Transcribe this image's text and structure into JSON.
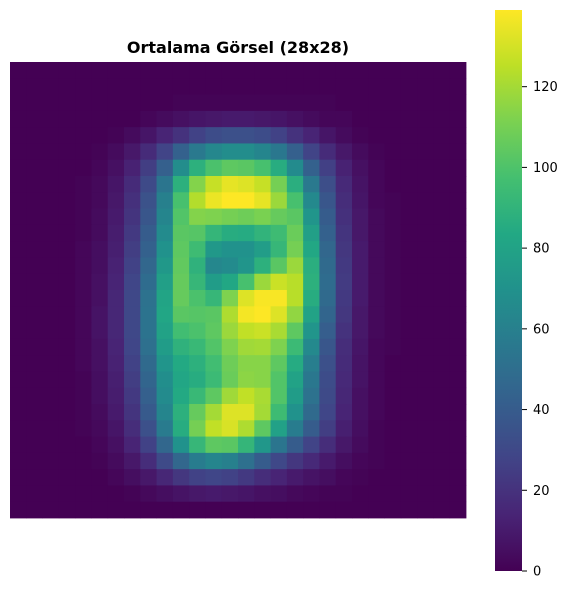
{
  "chart_data": {
    "type": "heatmap",
    "title": "Ortalama Görsel (28x28)",
    "xlabel": "",
    "ylabel": "",
    "rows": 28,
    "cols": 28,
    "colormap": "viridis",
    "value_range": [
      0,
      139
    ],
    "colorbar": {
      "ticks": [
        0,
        20,
        40,
        60,
        80,
        100,
        120
      ],
      "tick_labels": [
        "0",
        "20",
        "40",
        "60",
        "80",
        "100",
        "120"
      ]
    },
    "grid": false,
    "legend": "none",
    "axes_visible": false,
    "values": [
      [
        0,
        0,
        0,
        0,
        0,
        0,
        0,
        0,
        0,
        0,
        0,
        0,
        0,
        0,
        0,
        0,
        0,
        0,
        0,
        0,
        0,
        0,
        0,
        0,
        0,
        0,
        0,
        0
      ],
      [
        0,
        0,
        0,
        0,
        0,
        0,
        0,
        0,
        0,
        0,
        0,
        0,
        0,
        0,
        0,
        0,
        0,
        0,
        0,
        0,
        0,
        0,
        0,
        0,
        0,
        0,
        0,
        0
      ],
      [
        0,
        0,
        0,
        0,
        0,
        0,
        0,
        0,
        0,
        0,
        1,
        1,
        1,
        1,
        1,
        1,
        1,
        1,
        1,
        1,
        0,
        0,
        0,
        0,
        0,
        0,
        0,
        0
      ],
      [
        0,
        0,
        0,
        0,
        0,
        0,
        0,
        0,
        2,
        4,
        6,
        8,
        9,
        10,
        10,
        9,
        8,
        6,
        4,
        2,
        2,
        0,
        0,
        0,
        0,
        0,
        0,
        0
      ],
      [
        0,
        0,
        0,
        0,
        0,
        0,
        1,
        4,
        8,
        14,
        20,
        27,
        32,
        34,
        34,
        32,
        27,
        20,
        14,
        8,
        4,
        1,
        0,
        0,
        0,
        0,
        0,
        0
      ],
      [
        0,
        0,
        0,
        0,
        0,
        1,
        4,
        9,
        17,
        28,
        43,
        56,
        64,
        67,
        67,
        63,
        55,
        42,
        28,
        17,
        9,
        4,
        1,
        0,
        0,
        0,
        0,
        0
      ],
      [
        0,
        0,
        0,
        0,
        0,
        2,
        6,
        13,
        25,
        42,
        67,
        88,
        99,
        104,
        103,
        98,
        86,
        66,
        43,
        26,
        13,
        6,
        2,
        0,
        0,
        0,
        0,
        0
      ],
      [
        0,
        0,
        0,
        0,
        1,
        3,
        8,
        17,
        31,
        54,
        88,
        113,
        127,
        134,
        132,
        127,
        110,
        87,
        56,
        33,
        16,
        7,
        2,
        0,
        0,
        0,
        0,
        0
      ],
      [
        0,
        0,
        0,
        0,
        1,
        3,
        9,
        19,
        35,
        60,
        98,
        123,
        135,
        139,
        139,
        134,
        118,
        98,
        65,
        37,
        18,
        8,
        2,
        1,
        0,
        0,
        0,
        0
      ],
      [
        0,
        0,
        0,
        0,
        1,
        4,
        10,
        21,
        37,
        63,
        101,
        113,
        112,
        110,
        108,
        111,
        106,
        103,
        72,
        40,
        19,
        9,
        3,
        1,
        0,
        0,
        0,
        0
      ],
      [
        0,
        0,
        0,
        0,
        1,
        4,
        11,
        23,
        40,
        66,
        103,
        102,
        91,
        86,
        85,
        90,
        95,
        107,
        78,
        43,
        21,
        9,
        3,
        1,
        0,
        0,
        0,
        0
      ],
      [
        0,
        0,
        0,
        0,
        2,
        5,
        12,
        25,
        43,
        70,
        104,
        95,
        74,
        70,
        70,
        77,
        92,
        110,
        83,
        46,
        22,
        10,
        3,
        1,
        0,
        0,
        0,
        0
      ],
      [
        0,
        0,
        0,
        0,
        2,
        5,
        13,
        27,
        46,
        74,
        105,
        89,
        64,
        66,
        72,
        88,
        103,
        118,
        87,
        48,
        23,
        10,
        3,
        1,
        0,
        0,
        0,
        0
      ],
      [
        0,
        0,
        0,
        0,
        2,
        6,
        14,
        29,
        49,
        78,
        106,
        92,
        76,
        83,
        98,
        118,
        128,
        124,
        88,
        49,
        24,
        10,
        3,
        1,
        0,
        0,
        0,
        0
      ],
      [
        0,
        0,
        0,
        0,
        2,
        6,
        15,
        30,
        52,
        81,
        106,
        99,
        92,
        112,
        132,
        138,
        138,
        124,
        86,
        48,
        23,
        10,
        3,
        1,
        0,
        0,
        0,
        0
      ],
      [
        0,
        0,
        0,
        0,
        2,
        7,
        15,
        30,
        53,
        82,
        103,
        102,
        103,
        122,
        137,
        139,
        132,
        116,
        80,
        45,
        22,
        9,
        3,
        1,
        0,
        0,
        0,
        0
      ],
      [
        0,
        0,
        0,
        0,
        2,
        7,
        15,
        30,
        53,
        80,
        96,
        99,
        104,
        118,
        126,
        128,
        121,
        104,
        72,
        41,
        20,
        9,
        3,
        1,
        0,
        0,
        0,
        0
      ],
      [
        0,
        0,
        0,
        0,
        2,
        6,
        14,
        29,
        51,
        76,
        89,
        93,
        101,
        112,
        119,
        120,
        112,
        94,
        65,
        37,
        18,
        8,
        2,
        1,
        0,
        0,
        0,
        0
      ],
      [
        0,
        0,
        0,
        0,
        2,
        6,
        13,
        27,
        48,
        72,
        84,
        88,
        96,
        108,
        114,
        114,
        104,
        85,
        59,
        34,
        17,
        7,
        2,
        0,
        0,
        0,
        0,
        0
      ],
      [
        0,
        0,
        0,
        0,
        1,
        5,
        12,
        25,
        45,
        68,
        82,
        86,
        94,
        107,
        115,
        114,
        101,
        80,
        55,
        32,
        16,
        7,
        2,
        0,
        0,
        0,
        0,
        0
      ],
      [
        0,
        0,
        0,
        0,
        1,
        5,
        11,
        23,
        42,
        66,
        84,
        93,
        104,
        119,
        126,
        121,
        101,
        76,
        52,
        31,
        15,
        6,
        2,
        0,
        0,
        0,
        0,
        0
      ],
      [
        0,
        0,
        0,
        0,
        1,
        4,
        10,
        21,
        39,
        63,
        88,
        106,
        120,
        132,
        132,
        120,
        95,
        70,
        48,
        29,
        14,
        6,
        2,
        0,
        0,
        0,
        0,
        0
      ],
      [
        0,
        0,
        0,
        0,
        1,
        3,
        8,
        18,
        34,
        57,
        86,
        110,
        126,
        131,
        122,
        104,
        79,
        58,
        40,
        25,
        12,
        5,
        1,
        0,
        0,
        0,
        0,
        0
      ],
      [
        0,
        0,
        0,
        0,
        0,
        2,
        6,
        14,
        27,
        46,
        70,
        92,
        104,
        103,
        91,
        73,
        54,
        40,
        28,
        18,
        9,
        4,
        1,
        0,
        0,
        0,
        0,
        0
      ],
      [
        0,
        0,
        0,
        0,
        0,
        1,
        4,
        9,
        18,
        31,
        46,
        58,
        63,
        60,
        51,
        40,
        30,
        22,
        16,
        10,
        5,
        2,
        1,
        0,
        0,
        0,
        0,
        0
      ],
      [
        0,
        0,
        0,
        0,
        0,
        0,
        2,
        5,
        9,
        15,
        22,
        27,
        29,
        27,
        23,
        18,
        14,
        10,
        7,
        5,
        2,
        1,
        0,
        0,
        0,
        0,
        0,
        0
      ],
      [
        0,
        0,
        0,
        0,
        0,
        0,
        0,
        1,
        3,
        5,
        7,
        9,
        10,
        9,
        8,
        6,
        5,
        3,
        2,
        1,
        1,
        0,
        0,
        0,
        0,
        0,
        0,
        0
      ],
      [
        0,
        0,
        0,
        0,
        0,
        0,
        0,
        0,
        0,
        0,
        0,
        0,
        0,
        0,
        0,
        0,
        0,
        0,
        0,
        0,
        0,
        0,
        0,
        0,
        0,
        0,
        0,
        0
      ]
    ]
  }
}
